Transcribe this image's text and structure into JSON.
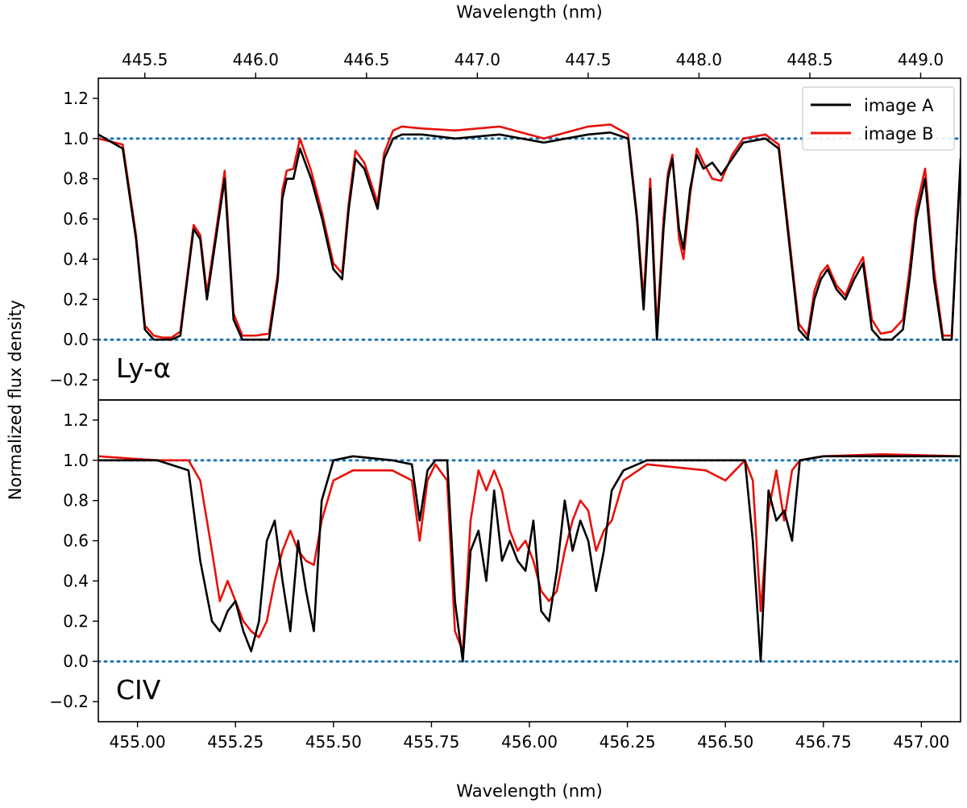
{
  "chart_data": [
    {
      "panel": "Ly-alpha",
      "type": "line",
      "label": "Ly-α",
      "xlabel": "Wavelength (nm)",
      "xlim": [
        445.29,
        449.18
      ],
      "xticks": [
        445.5,
        446.0,
        446.5,
        447.0,
        447.5,
        448.0,
        448.5,
        449.0
      ],
      "xtick_labels": [
        "445.5",
        "446.0",
        "446.5",
        "447.0",
        "447.5",
        "448.0",
        "448.5",
        "449.0"
      ],
      "xaxis_position": "top",
      "ylim": [
        -0.3,
        1.3
      ],
      "yticks": [
        -0.2,
        0.0,
        0.2,
        0.4,
        0.6,
        0.8,
        1.0,
        1.2
      ],
      "ytick_labels": [
        "−0.2",
        "0.0",
        "0.2",
        "0.4",
        "0.6",
        "0.8",
        "1.0",
        "1.2"
      ],
      "reference_lines": [
        0.0,
        1.0
      ],
      "reference_line_color": "#1f77b4",
      "series": [
        {
          "name": "image A",
          "color": "#000000",
          "x": [
            445.29,
            445.4,
            445.46,
            445.5,
            445.54,
            445.58,
            445.62,
            445.66,
            445.68,
            445.72,
            445.75,
            445.78,
            445.82,
            445.86,
            445.9,
            445.94,
            446.0,
            446.06,
            446.1,
            446.12,
            446.14,
            446.17,
            446.2,
            446.25,
            446.3,
            446.35,
            446.39,
            446.42,
            446.45,
            446.49,
            446.55,
            446.58,
            446.62,
            446.66,
            446.75,
            446.9,
            447.1,
            447.3,
            447.5,
            447.6,
            447.68,
            447.72,
            447.75,
            447.78,
            447.81,
            447.84,
            447.86,
            447.88,
            447.91,
            447.93,
            447.96,
            447.99,
            448.02,
            448.06,
            448.1,
            448.15,
            448.2,
            448.3,
            448.36,
            448.4,
            448.45,
            448.49,
            448.52,
            448.55,
            448.58,
            448.62,
            448.66,
            448.7,
            448.74,
            448.78,
            448.82,
            448.87,
            448.92,
            448.95,
            448.98,
            449.02,
            449.06,
            449.1,
            449.14,
            449.18
          ],
          "y": [
            1.02,
            0.95,
            0.5,
            0.05,
            0.0,
            0.0,
            0.0,
            0.02,
            0.2,
            0.55,
            0.5,
            0.2,
            0.5,
            0.8,
            0.1,
            0.0,
            0.0,
            0.0,
            0.3,
            0.7,
            0.8,
            0.8,
            0.95,
            0.8,
            0.6,
            0.35,
            0.3,
            0.65,
            0.9,
            0.85,
            0.65,
            0.9,
            1.0,
            1.02,
            1.02,
            1.0,
            1.02,
            0.98,
            1.02,
            1.03,
            1.0,
            0.6,
            0.15,
            0.75,
            0.0,
            0.55,
            0.8,
            0.9,
            0.55,
            0.45,
            0.75,
            0.92,
            0.85,
            0.88,
            0.82,
            0.9,
            0.98,
            1.0,
            0.95,
            0.55,
            0.05,
            0.0,
            0.2,
            0.3,
            0.35,
            0.25,
            0.2,
            0.3,
            0.38,
            0.05,
            0.0,
            0.0,
            0.05,
            0.3,
            0.6,
            0.8,
            0.3,
            0.0,
            0.0,
            0.9
          ]
        },
        {
          "name": "image B",
          "color": "#e8120c",
          "x": [
            445.29,
            445.4,
            445.46,
            445.5,
            445.54,
            445.58,
            445.62,
            445.66,
            445.68,
            445.72,
            445.75,
            445.78,
            445.82,
            445.86,
            445.9,
            445.94,
            446.0,
            446.06,
            446.1,
            446.12,
            446.14,
            446.17,
            446.2,
            446.25,
            446.3,
            446.35,
            446.39,
            446.42,
            446.45,
            446.49,
            446.55,
            446.58,
            446.62,
            446.66,
            446.75,
            446.9,
            447.1,
            447.3,
            447.5,
            447.6,
            447.68,
            447.72,
            447.75,
            447.78,
            447.81,
            447.84,
            447.86,
            447.88,
            447.91,
            447.93,
            447.96,
            447.99,
            448.02,
            448.06,
            448.1,
            448.15,
            448.2,
            448.3,
            448.36,
            448.4,
            448.45,
            448.49,
            448.52,
            448.55,
            448.58,
            448.62,
            448.66,
            448.7,
            448.74,
            448.78,
            448.82,
            448.87,
            448.92,
            448.95,
            448.98,
            449.02,
            449.06,
            449.1,
            449.14,
            449.18
          ],
          "y": [
            1.0,
            0.97,
            0.52,
            0.07,
            0.02,
            0.01,
            0.01,
            0.04,
            0.22,
            0.57,
            0.52,
            0.23,
            0.53,
            0.84,
            0.13,
            0.02,
            0.02,
            0.03,
            0.33,
            0.74,
            0.84,
            0.85,
            1.0,
            0.84,
            0.63,
            0.38,
            0.33,
            0.68,
            0.94,
            0.88,
            0.68,
            0.93,
            1.04,
            1.06,
            1.05,
            1.04,
            1.06,
            1.0,
            1.06,
            1.07,
            1.02,
            0.62,
            0.2,
            0.8,
            0.05,
            0.6,
            0.83,
            0.92,
            0.5,
            0.4,
            0.72,
            0.95,
            0.88,
            0.8,
            0.79,
            0.92,
            1.0,
            1.02,
            0.97,
            0.58,
            0.08,
            0.02,
            0.24,
            0.33,
            0.37,
            0.27,
            0.22,
            0.33,
            0.41,
            0.1,
            0.03,
            0.04,
            0.1,
            0.35,
            0.65,
            0.85,
            0.35,
            0.02,
            0.02,
            0.88
          ]
        }
      ],
      "legend": {
        "position": "upper-right",
        "entries": [
          "image A",
          "image B"
        ]
      }
    },
    {
      "panel": "CIV",
      "type": "line",
      "label": "CIV",
      "xlabel": "Wavelength (nm)",
      "xlim": [
        454.9,
        457.1
      ],
      "xticks": [
        455.0,
        455.25,
        455.5,
        455.75,
        456.0,
        456.25,
        456.5,
        456.75,
        457.0
      ],
      "xtick_labels": [
        "455.00",
        "455.25",
        "455.50",
        "455.75",
        "456.00",
        "456.25",
        "456.50",
        "456.75",
        "457.00"
      ],
      "xaxis_position": "bottom",
      "ylim": [
        -0.3,
        1.3
      ],
      "yticks": [
        -0.2,
        0.0,
        0.2,
        0.4,
        0.6,
        0.8,
        1.0,
        1.2
      ],
      "ytick_labels": [
        "−0.2",
        "0.0",
        "0.2",
        "0.4",
        "0.6",
        "0.8",
        "1.0",
        "1.2"
      ],
      "reference_lines": [
        0.0,
        1.0
      ],
      "reference_line_color": "#1f77b4",
      "series": [
        {
          "name": "image A",
          "color": "#000000",
          "x": [
            454.9,
            455.05,
            455.13,
            455.16,
            455.19,
            455.21,
            455.23,
            455.25,
            455.27,
            455.29,
            455.31,
            455.33,
            455.35,
            455.37,
            455.39,
            455.41,
            455.43,
            455.45,
            455.47,
            455.5,
            455.55,
            455.65,
            455.7,
            455.72,
            455.74,
            455.76,
            455.79,
            455.81,
            455.83,
            455.85,
            455.87,
            455.89,
            455.91,
            455.93,
            455.95,
            455.97,
            455.99,
            456.01,
            456.03,
            456.05,
            456.07,
            456.09,
            456.11,
            456.13,
            456.15,
            456.17,
            456.19,
            456.21,
            456.24,
            456.3,
            456.45,
            456.5,
            456.55,
            456.57,
            456.59,
            456.61,
            456.63,
            456.65,
            456.67,
            456.69,
            456.75,
            456.9,
            457.1
          ],
          "y": [
            1.0,
            1.0,
            0.95,
            0.5,
            0.2,
            0.15,
            0.25,
            0.3,
            0.15,
            0.05,
            0.2,
            0.6,
            0.7,
            0.4,
            0.15,
            0.6,
            0.35,
            0.15,
            0.8,
            1.0,
            1.02,
            1.0,
            0.98,
            0.7,
            0.95,
            1.0,
            1.0,
            0.3,
            0.0,
            0.55,
            0.65,
            0.4,
            0.85,
            0.5,
            0.6,
            0.5,
            0.45,
            0.7,
            0.25,
            0.2,
            0.45,
            0.8,
            0.55,
            0.7,
            0.6,
            0.35,
            0.55,
            0.85,
            0.95,
            1.0,
            1.0,
            1.0,
            1.0,
            0.6,
            0.0,
            0.85,
            0.7,
            0.75,
            0.6,
            1.0,
            1.02,
            1.02,
            1.02
          ]
        },
        {
          "name": "image B",
          "color": "#e8120c",
          "x": [
            454.9,
            455.05,
            455.13,
            455.16,
            455.19,
            455.21,
            455.23,
            455.25,
            455.27,
            455.29,
            455.31,
            455.33,
            455.35,
            455.37,
            455.39,
            455.41,
            455.43,
            455.45,
            455.47,
            455.5,
            455.55,
            455.65,
            455.7,
            455.72,
            455.74,
            455.76,
            455.79,
            455.81,
            455.83,
            455.85,
            455.87,
            455.89,
            455.91,
            455.93,
            455.95,
            455.97,
            455.99,
            456.01,
            456.03,
            456.05,
            456.07,
            456.09,
            456.11,
            456.13,
            456.15,
            456.17,
            456.19,
            456.21,
            456.24,
            456.3,
            456.45,
            456.5,
            456.55,
            456.57,
            456.59,
            456.61,
            456.63,
            456.65,
            456.67,
            456.69,
            456.75,
            456.9,
            457.1
          ],
          "y": [
            1.02,
            1.0,
            1.0,
            0.9,
            0.55,
            0.3,
            0.4,
            0.3,
            0.2,
            0.15,
            0.12,
            0.2,
            0.4,
            0.55,
            0.65,
            0.55,
            0.5,
            0.48,
            0.7,
            0.9,
            0.95,
            0.95,
            0.9,
            0.6,
            0.9,
            0.98,
            0.9,
            0.15,
            0.05,
            0.7,
            0.95,
            0.85,
            0.95,
            0.85,
            0.65,
            0.55,
            0.6,
            0.5,
            0.35,
            0.3,
            0.35,
            0.55,
            0.7,
            0.8,
            0.75,
            0.55,
            0.65,
            0.7,
            0.9,
            0.98,
            0.95,
            0.9,
            1.0,
            0.9,
            0.25,
            0.75,
            0.95,
            0.7,
            0.95,
            1.0,
            1.02,
            1.03,
            1.02
          ]
        }
      ]
    }
  ],
  "ylabel": "Normalized flux density",
  "top_xlabel": "Wavelength (nm)",
  "bottom_xlabel": "Wavelength (nm)"
}
